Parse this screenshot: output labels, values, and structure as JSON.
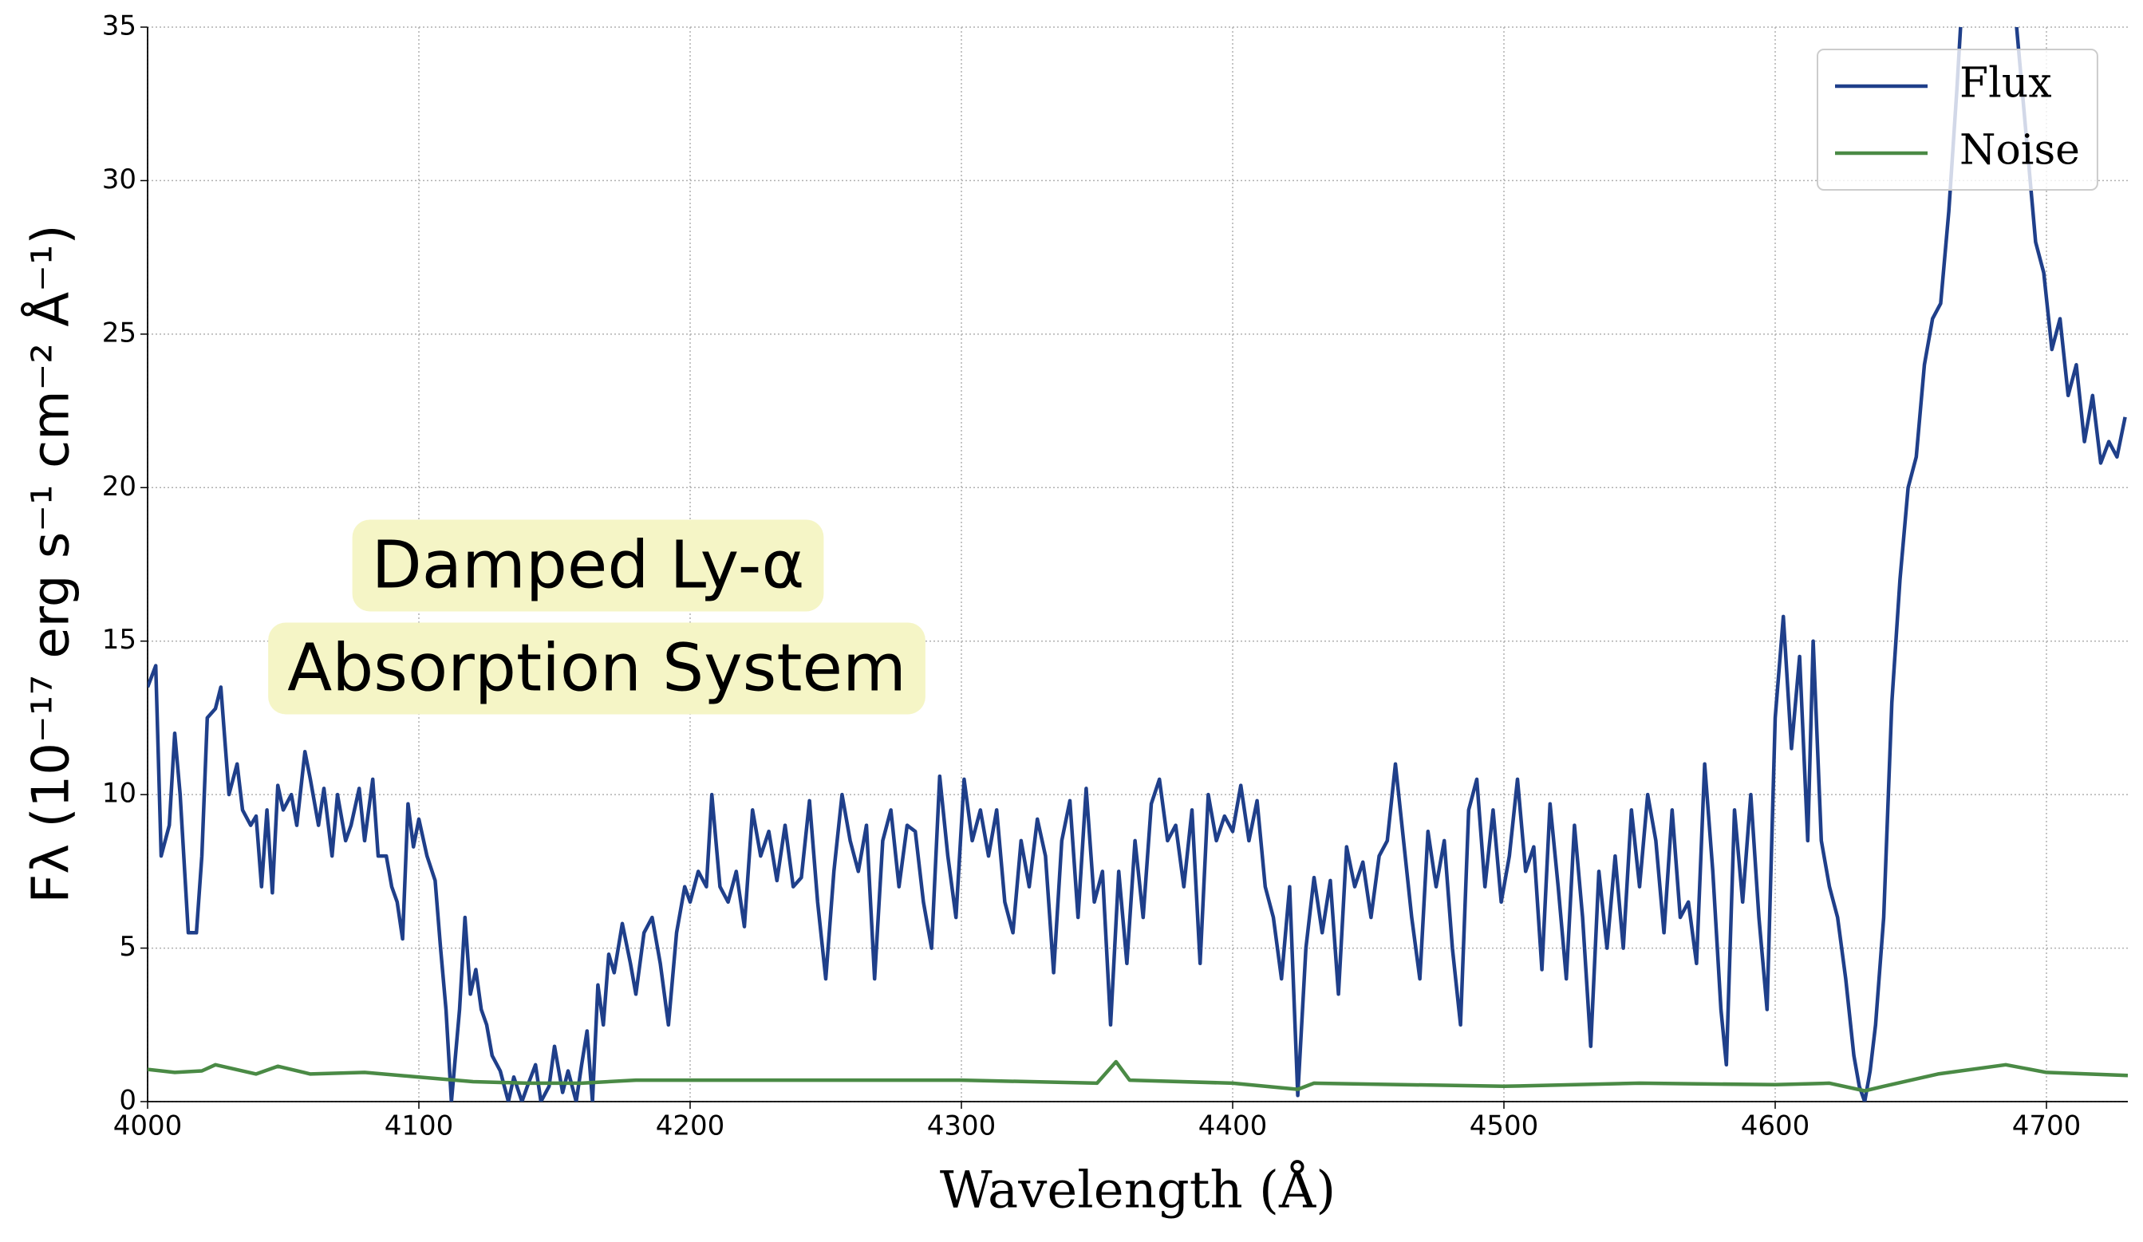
{
  "chart_data": {
    "type": "line",
    "xlabel": "Wavelength (Å)",
    "ylabel": "Fλ (10⁻¹⁷ erg s⁻¹ cm⁻² Å⁻¹)",
    "annotations": [
      "Damped Ly-α",
      "Absorption System"
    ],
    "xlim": [
      4000,
      4730
    ],
    "ylim": [
      0,
      35
    ],
    "xticks": [
      4000,
      4100,
      4200,
      4300,
      4400,
      4500,
      4600,
      4700
    ],
    "yticks": [
      0,
      5,
      10,
      15,
      20,
      25,
      30,
      35
    ],
    "grid": true,
    "legend": "upper right",
    "series": [
      {
        "name": "Flux",
        "color": "#1f3f8a",
        "x": [
          4000,
          4003,
          4005,
          4008,
          4010,
          4012,
          4015,
          4018,
          4020,
          4022,
          4025,
          4027,
          4030,
          4033,
          4035,
          4038,
          4040,
          4042,
          4044,
          4046,
          4048,
          4050,
          4053,
          4055,
          4058,
          4060,
          4063,
          4065,
          4068,
          4070,
          4073,
          4075,
          4078,
          4080,
          4083,
          4085,
          4088,
          4090,
          4092,
          4094,
          4096,
          4098,
          4100,
          4103,
          4106,
          4108,
          4110,
          4112,
          4115,
          4117,
          4119,
          4121,
          4123,
          4125,
          4127,
          4130,
          4133,
          4135,
          4138,
          4140,
          4143,
          4145,
          4148,
          4150,
          4153,
          4155,
          4158,
          4160,
          4162,
          4164,
          4166,
          4168,
          4170,
          4172,
          4175,
          4178,
          4180,
          4183,
          4186,
          4189,
          4192,
          4195,
          4198,
          4200,
          4203,
          4206,
          4208,
          4211,
          4214,
          4217,
          4220,
          4223,
          4226,
          4229,
          4232,
          4235,
          4238,
          4241,
          4244,
          4247,
          4250,
          4253,
          4256,
          4259,
          4262,
          4265,
          4268,
          4271,
          4274,
          4277,
          4280,
          4283,
          4286,
          4289,
          4292,
          4295,
          4298,
          4301,
          4304,
          4307,
          4310,
          4313,
          4316,
          4319,
          4322,
          4325,
          4328,
          4331,
          4334,
          4337,
          4340,
          4343,
          4346,
          4349,
          4352,
          4355,
          4358,
          4361,
          4364,
          4367,
          4370,
          4373,
          4376,
          4379,
          4382,
          4385,
          4388,
          4391,
          4394,
          4397,
          4400,
          4403,
          4406,
          4409,
          4412,
          4415,
          4418,
          4421,
          4424,
          4427,
          4430,
          4433,
          4436,
          4439,
          4442,
          4445,
          4448,
          4451,
          4454,
          4457,
          4460,
          4463,
          4466,
          4469,
          4472,
          4475,
          4478,
          4481,
          4484,
          4487,
          4490,
          4493,
          4496,
          4499,
          4502,
          4505,
          4508,
          4511,
          4514,
          4517,
          4520,
          4523,
          4526,
          4529,
          4532,
          4535,
          4538,
          4541,
          4544,
          4547,
          4550,
          4553,
          4556,
          4559,
          4562,
          4565,
          4568,
          4571,
          4574,
          4577,
          4580,
          4582,
          4585,
          4588,
          4591,
          4594,
          4597,
          4600,
          4603,
          4606,
          4609,
          4612,
          4614,
          4617,
          4620,
          4623,
          4626,
          4629,
          4631,
          4633,
          4635,
          4637,
          4640,
          4643,
          4646,
          4649,
          4652,
          4655,
          4658,
          4661,
          4664,
          4667,
          4669,
          4672,
          4675,
          4678,
          4681,
          4684,
          4687,
          4690,
          4693,
          4696,
          4699,
          4702,
          4705,
          4708,
          4711,
          4714,
          4717,
          4720,
          4723,
          4726,
          4729
        ],
        "values": [
          13.5,
          14.2,
          8,
          9,
          12,
          10,
          5.5,
          5.5,
          8,
          12.5,
          12.8,
          13.5,
          10,
          11,
          9.5,
          9,
          9.3,
          7,
          9.5,
          6.8,
          10.3,
          9.5,
          10,
          9,
          11.4,
          10.5,
          9,
          10.2,
          8,
          10,
          8.5,
          9,
          10.2,
          8.5,
          10.5,
          8,
          8,
          7,
          6.5,
          5.3,
          9.7,
          8.3,
          9.2,
          8,
          7.2,
          5,
          3,
          0,
          3,
          6,
          3.5,
          4.3,
          3,
          2.5,
          1.5,
          1,
          0,
          0.8,
          0,
          0.5,
          1.2,
          0,
          0.5,
          1.8,
          0.3,
          1,
          0,
          1.2,
          2.3,
          0,
          3.8,
          2.5,
          4.8,
          4.2,
          5.8,
          4.5,
          3.5,
          5.5,
          6,
          4.5,
          2.5,
          5.5,
          7,
          6.5,
          7.5,
          7,
          10,
          7,
          6.5,
          7.5,
          5.7,
          9.5,
          8,
          8.8,
          7.2,
          9,
          7,
          7.3,
          9.8,
          6.5,
          4,
          7.5,
          10,
          8.5,
          7.5,
          9,
          4,
          8.5,
          9.5,
          7,
          9,
          8.8,
          6.5,
          5,
          10.6,
          8,
          6,
          10.5,
          8.5,
          9.5,
          8,
          9.5,
          6.5,
          5.5,
          8.5,
          7,
          9.2,
          8,
          4.2,
          8.5,
          9.8,
          6,
          10.2,
          6.5,
          7.5,
          2.5,
          7.5,
          4.5,
          8.5,
          6,
          9.7,
          10.5,
          8.5,
          9,
          7,
          9.5,
          4.5,
          10,
          8.5,
          9.3,
          8.8,
          10.3,
          8.5,
          9.8,
          7,
          6,
          4,
          7,
          0.2,
          5,
          7.3,
          5.5,
          7.2,
          3.5,
          8.3,
          7,
          7.8,
          6,
          8,
          8.5,
          11,
          8.5,
          6,
          4,
          8.8,
          7,
          8.5,
          5,
          2.5,
          9.5,
          10.5,
          7,
          9.5,
          6.5,
          8,
          10.5,
          7.5,
          8.3,
          4.3,
          9.7,
          7,
          4,
          9,
          6,
          1.8,
          7.5,
          5,
          8,
          5,
          9.5,
          7,
          10,
          8.5,
          5.5,
          9.5,
          6,
          6.5,
          4.5,
          11,
          7.5,
          3,
          1.2,
          9.5,
          6.5,
          10,
          6,
          3,
          12.5,
          15.8,
          11.5,
          14.5,
          8.5,
          15,
          8.5,
          7,
          6,
          4,
          1.5,
          0.5,
          0,
          1,
          2.5,
          6,
          13,
          17,
          20,
          21,
          24,
          25.5,
          26,
          29,
          33,
          36,
          38,
          37,
          38,
          38,
          36,
          37,
          34,
          31,
          28,
          27,
          24.5,
          25.5,
          23,
          24,
          21.5,
          23,
          20.8,
          21.5,
          21,
          22.3
        ]
      },
      {
        "name": "Noise",
        "color": "#4a8a45",
        "x": [
          4000,
          4010,
          4020,
          4025,
          4040,
          4048,
          4060,
          4080,
          4100,
          4120,
          4140,
          4160,
          4180,
          4200,
          4250,
          4300,
          4350,
          4357,
          4362,
          4400,
          4424,
          4430,
          4500,
          4550,
          4600,
          4620,
          4633,
          4640,
          4660,
          4685,
          4700,
          4730
        ],
        "values": [
          1.05,
          0.95,
          1.0,
          1.2,
          0.9,
          1.15,
          0.9,
          0.95,
          0.8,
          0.65,
          0.6,
          0.6,
          0.7,
          0.7,
          0.7,
          0.7,
          0.6,
          1.3,
          0.7,
          0.6,
          0.4,
          0.6,
          0.5,
          0.6,
          0.55,
          0.6,
          0.35,
          0.5,
          0.9,
          1.2,
          0.95,
          0.85
        ]
      }
    ]
  }
}
